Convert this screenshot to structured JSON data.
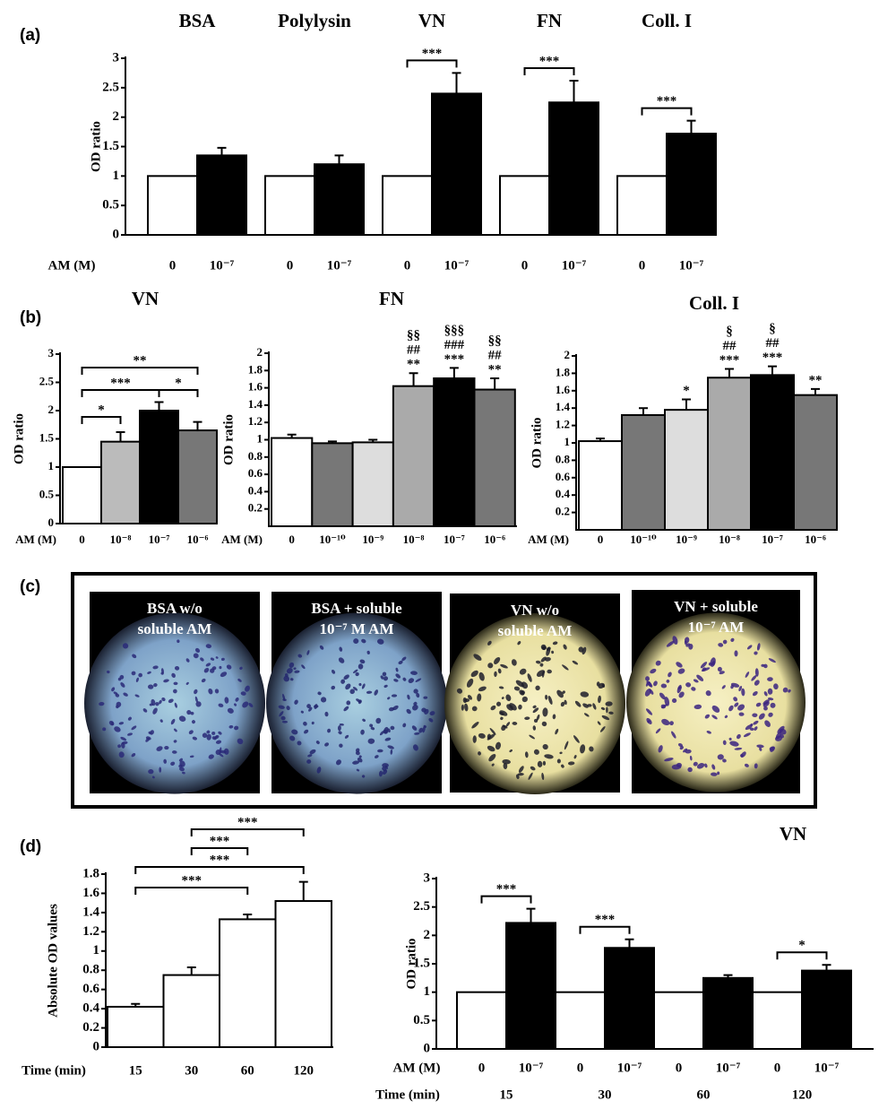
{
  "panels": [
    "(a)",
    "(b)",
    "(c)",
    "(d)"
  ],
  "chart_data": [
    {
      "type": "bar",
      "y_label": "OD ratio",
      "x_label": "AM (M)",
      "categories": [
        "BSA",
        "Polylysin",
        "VN",
        "FN",
        "Coll. I"
      ],
      "series": [
        {
          "name": "0",
          "color": "#ffffff",
          "values": [
            1,
            1,
            1,
            1,
            1
          ]
        },
        {
          "name": "10⁻⁷",
          "color": "#000000",
          "values": [
            1.35,
            1.2,
            2.4,
            2.25,
            1.72
          ],
          "errors": [
            0.13,
            0.15,
            0.35,
            0.37,
            0.22
          ]
        }
      ],
      "significance": [
        null,
        null,
        "***",
        "***",
        "***"
      ],
      "ylim": [
        0,
        3
      ],
      "yticks": [
        0,
        0.5,
        1,
        1.5,
        2,
        2.5,
        3
      ]
    },
    {
      "type": "bar",
      "title": "VN",
      "y_label": "OD ratio",
      "x_label": "AM (M)",
      "categories": [
        "0",
        "10⁻⁸",
        "10⁻⁷",
        "10⁻⁶"
      ],
      "values": [
        1,
        1.45,
        2,
        1.65
      ],
      "errors": [
        null,
        0.17,
        0.15,
        0.15
      ],
      "colors": [
        "#ffffff",
        "#bbbbbb",
        "#000000",
        "#777777"
      ],
      "brackets": [
        {
          "between": [
            "0",
            "10⁻⁸"
          ],
          "label": "*"
        },
        {
          "between": [
            "0",
            "10⁻⁷"
          ],
          "label": "***"
        },
        {
          "between": [
            "10⁻⁷",
            "10⁻⁶"
          ],
          "label": "*"
        },
        {
          "between": [
            "0",
            "10⁻⁶"
          ],
          "label": "**"
        }
      ],
      "ylim": [
        0,
        3
      ],
      "yticks": [
        0,
        0.5,
        1,
        1.5,
        2,
        2.5,
        3
      ]
    },
    {
      "type": "bar",
      "title": "FN",
      "y_label": "OD ratio",
      "x_label": "AM (M)",
      "categories": [
        "0",
        "10⁻¹⁰",
        "10⁻⁹",
        "10⁻⁸",
        "10⁻⁷",
        "10⁻⁶"
      ],
      "values": [
        1.02,
        0.96,
        0.97,
        1.62,
        1.71,
        1.58
      ],
      "errors": [
        0.04,
        0.02,
        0.03,
        0.15,
        0.12,
        0.13
      ],
      "colors": [
        "#ffffff",
        "#777777",
        "#dddddd",
        "#aaaaaa",
        "#000000",
        "#777777"
      ],
      "annotations": [
        null,
        null,
        null,
        [
          "§§",
          "##",
          "**"
        ],
        [
          "§§§",
          "###",
          "***"
        ],
        [
          "§§",
          "##",
          "**"
        ]
      ],
      "ylim": [
        0,
        2
      ],
      "yticks": [
        0.2,
        0.4,
        0.6,
        0.8,
        1,
        1.2,
        1.4,
        1.6,
        1.8,
        2
      ]
    },
    {
      "type": "bar",
      "title": "Coll. I",
      "y_label": "OD ratio",
      "x_label": "AM (M)",
      "categories": [
        "0",
        "10⁻¹⁰",
        "10⁻⁹",
        "10⁻⁸",
        "10⁻⁷",
        "10⁻⁶"
      ],
      "values": [
        1.02,
        1.32,
        1.38,
        1.75,
        1.78,
        1.55
      ],
      "errors": [
        0.03,
        0.08,
        0.12,
        0.1,
        0.1,
        0.07
      ],
      "colors": [
        "#ffffff",
        "#777777",
        "#dddddd",
        "#aaaaaa",
        "#000000",
        "#777777"
      ],
      "annotations": [
        null,
        null,
        [
          "*"
        ],
        [
          "§",
          "##",
          "***"
        ],
        [
          "§",
          "##",
          "***"
        ],
        [
          "**"
        ]
      ],
      "ylim": [
        0,
        2
      ],
      "yticks": [
        0.2,
        0.4,
        0.6,
        0.8,
        1,
        1.2,
        1.4,
        1.6,
        1.8,
        2
      ]
    },
    {
      "type": "bar",
      "y_label": "Absolute OD values",
      "x_label": "Time (min)",
      "categories": [
        "15",
        "30",
        "60",
        "120"
      ],
      "values": [
        0.42,
        0.75,
        1.33,
        1.52
      ],
      "errors": [
        0.03,
        0.08,
        0.05,
        0.2
      ],
      "colors": [
        "#ffffff",
        "#ffffff",
        "#ffffff",
        "#ffffff"
      ],
      "brackets": [
        {
          "between": [
            "15",
            "60"
          ],
          "label": "***"
        },
        {
          "between": [
            "15",
            "120"
          ],
          "label": "***"
        },
        {
          "between": [
            "30",
            "60"
          ],
          "label": "***"
        },
        {
          "between": [
            "30",
            "120"
          ],
          "label": "***"
        }
      ],
      "ylim": [
        0,
        1.8
      ],
      "yticks": [
        0,
        0.2,
        0.4,
        0.6,
        0.8,
        1,
        1.2,
        1.4,
        1.6,
        1.8
      ]
    },
    {
      "type": "bar",
      "title": "VN",
      "y_label": "OD ratio",
      "x_label": "AM (M)",
      "time_label": "Time (min)",
      "categories": [
        "15",
        "30",
        "60",
        "120"
      ],
      "series": [
        {
          "name": "0",
          "color": "#ffffff",
          "values": [
            1,
            1,
            1,
            1
          ]
        },
        {
          "name": "10⁻⁷",
          "color": "#000000",
          "values": [
            2.22,
            1.78,
            1.25,
            1.38
          ],
          "errors": [
            0.25,
            0.15,
            0.05,
            0.1
          ]
        }
      ],
      "significance": [
        "***",
        "***",
        null,
        "*"
      ],
      "ylim": [
        0,
        3
      ],
      "yticks": [
        0,
        0.5,
        1,
        1.5,
        2,
        2.5,
        3
      ]
    }
  ],
  "images": [
    {
      "caption": [
        "BSA w/o",
        "soluble AM"
      ]
    },
    {
      "caption": [
        "BSA + soluble",
        "10⁻⁷ M AM"
      ]
    },
    {
      "caption": [
        "VN w/o",
        "soluble AM"
      ]
    },
    {
      "caption": [
        "VN + soluble",
        "10⁻⁷ AM"
      ]
    }
  ]
}
